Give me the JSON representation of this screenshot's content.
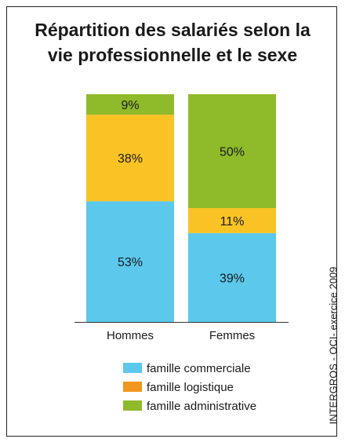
{
  "title_line1": "Répartition des salariés selon la",
  "title_line2": "vie professionnelle et le sexe",
  "source": "INTERGROS - OCI- exercice 2009",
  "chart_data": {
    "type": "bar",
    "stacked": true,
    "categories": [
      "Hommes",
      "Femmes"
    ],
    "series": [
      {
        "name": "famille commerciale",
        "color": "#5bc8ec",
        "values": [
          53,
          39
        ],
        "labels": [
          "53%",
          "39%"
        ]
      },
      {
        "name": "famille logistique",
        "color": "#f9c325",
        "values": [
          38,
          11
        ],
        "labels": [
          "38%",
          "11%"
        ]
      },
      {
        "name": "famille administrative",
        "color": "#8fba2a",
        "values": [
          9,
          50
        ],
        "labels": [
          "9%",
          "50%"
        ]
      }
    ],
    "legend_colors": [
      "#5bc8ec",
      "#f0981e",
      "#8fba2a"
    ],
    "ylim": [
      0,
      100
    ],
    "unit": "%",
    "legend_position": "bottom"
  }
}
